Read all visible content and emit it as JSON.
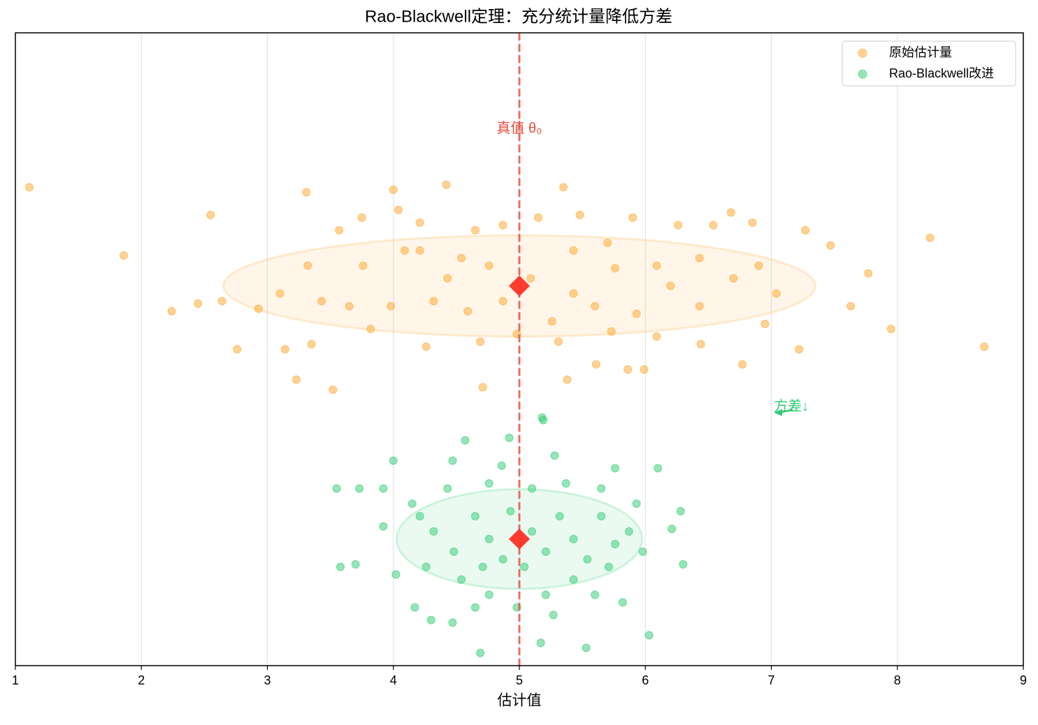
{
  "chart_data": {
    "type": "scatter",
    "title": "Rao-Blackwell定理：充分统计量降低方差",
    "xlabel": "估计值",
    "xlim": [
      1,
      9
    ],
    "xticks": [
      1,
      2,
      3,
      4,
      5,
      6,
      7,
      8,
      9
    ],
    "ylim": [
      -0.5,
      2.0
    ],
    "grid": true,
    "legend": "upper right",
    "series": [
      {
        "name": "原始估计量",
        "color": "#ffa62b",
        "x": [
          1.11,
          1.86,
          2.24,
          8.69,
          8.26,
          7.95,
          2.55,
          3.31,
          4.0,
          4.42,
          5.35,
          3.23,
          3.52,
          4.71,
          7.77,
          7.63,
          7.27,
          7.47,
          6.68,
          6.85,
          6.77,
          7.22,
          5.86,
          5.99,
          5.61,
          5.38,
          2.45,
          2.76,
          2.64,
          2.93,
          3.14,
          3.35,
          3.57,
          3.75,
          4.04,
          4.21,
          4.65,
          4.87,
          5.15,
          5.48,
          5.9,
          6.26,
          6.54,
          6.9,
          7.04,
          6.95,
          6.44,
          6.09,
          5.73,
          5.31,
          4.98,
          4.69,
          4.26,
          3.82,
          3.65,
          3.76,
          4.09,
          4.43,
          4.76,
          5.09,
          5.43,
          5.76,
          6.2,
          6.43,
          6.7,
          3.32,
          3.1,
          3.43,
          3.98,
          4.32,
          4.59,
          4.87,
          5.26,
          5.6,
          5.93,
          6.09,
          6.43,
          4.21,
          4.54,
          5.43,
          5.7
        ],
        "values": [
          1.39,
          1.12,
          0.9,
          0.76,
          1.19,
          0.83,
          1.28,
          1.37,
          1.38,
          1.4,
          1.39,
          0.63,
          0.59,
          0.6,
          1.05,
          0.92,
          1.22,
          1.16,
          1.29,
          1.25,
          0.69,
          0.75,
          0.67,
          0.67,
          0.69,
          0.63,
          0.93,
          0.75,
          0.94,
          0.91,
          0.75,
          0.77,
          1.22,
          1.27,
          1.3,
          1.25,
          1.22,
          1.24,
          1.27,
          1.28,
          1.27,
          1.24,
          1.24,
          1.08,
          0.97,
          0.85,
          0.77,
          0.8,
          0.82,
          0.78,
          0.81,
          0.78,
          0.76,
          0.83,
          0.92,
          1.08,
          1.14,
          1.03,
          1.08,
          1.03,
          0.97,
          1.07,
          1.0,
          0.92,
          1.03,
          1.08,
          0.97,
          0.94,
          0.92,
          0.94,
          0.9,
          0.94,
          0.86,
          0.92,
          0.89,
          1.08,
          1.11,
          1.14,
          1.11,
          1.14,
          1.17
        ]
      },
      {
        "name": "Rao-Blackwell改进",
        "color": "#2ecc71",
        "x": [
          5.18,
          5.19,
          4.57,
          4.92,
          3.55,
          3.58,
          3.7,
          3.73,
          3.92,
          4.0,
          4.47,
          5.28,
          6.1,
          6.28,
          6.3,
          6.21,
          6.03,
          5.53,
          5.17,
          4.69,
          4.3,
          4.47,
          4.17,
          4.02,
          3.92,
          4.15,
          4.32,
          4.48,
          4.65,
          4.76,
          4.87,
          5.1,
          5.21,
          5.32,
          5.43,
          5.54,
          5.65,
          5.76,
          5.87,
          5.98,
          5.93,
          5.65,
          5.37,
          5.1,
          4.76,
          4.43,
          4.21,
          4.26,
          4.54,
          4.76,
          4.98,
          5.21,
          5.43,
          5.71,
          5.82,
          5.6,
          4.65,
          5.27,
          4.93,
          5.04,
          4.71,
          5.76,
          4.86
        ],
        "values": [
          0.48,
          0.47,
          0.39,
          0.4,
          0.2,
          -0.11,
          -0.1,
          0.2,
          0.2,
          0.31,
          0.31,
          0.33,
          0.28,
          0.11,
          -0.1,
          0.04,
          -0.38,
          -0.43,
          -0.41,
          -0.45,
          -0.32,
          -0.33,
          -0.27,
          -0.14,
          0.05,
          0.14,
          0.03,
          -0.05,
          0.09,
          0.0,
          -0.08,
          0.03,
          -0.05,
          0.09,
          0.0,
          -0.08,
          0.09,
          -0.02,
          0.03,
          -0.05,
          0.14,
          0.2,
          0.22,
          0.2,
          0.22,
          0.2,
          0.09,
          -0.11,
          -0.16,
          -0.22,
          -0.27,
          -0.22,
          -0.16,
          -0.11,
          -0.25,
          -0.22,
          -0.27,
          -0.3,
          0.11,
          -0.11,
          -0.11,
          0.28,
          0.29
        ]
      }
    ],
    "ellipses": [
      {
        "cx": 5,
        "cy": 1,
        "rx": 2.35,
        "ry": 0.2,
        "color": "#ffa62b"
      },
      {
        "cx": 5,
        "cy": 0,
        "rx": 0.975,
        "ry": 0.197,
        "color": "#2ecc71"
      }
    ],
    "means": {
      "x": [
        5,
        5
      ],
      "values": [
        1,
        0
      ],
      "color": "#ff3b30"
    },
    "true_value": {
      "x": 5,
      "label": "真值 θ₀",
      "label_y": 1.62,
      "color": "#e74c3c"
    },
    "annotation": {
      "text": "方差↓",
      "xy": [
        7.02,
        0.5
      ],
      "xytext": [
        7.17,
        0.51
      ],
      "color": "#2ecc71"
    }
  }
}
